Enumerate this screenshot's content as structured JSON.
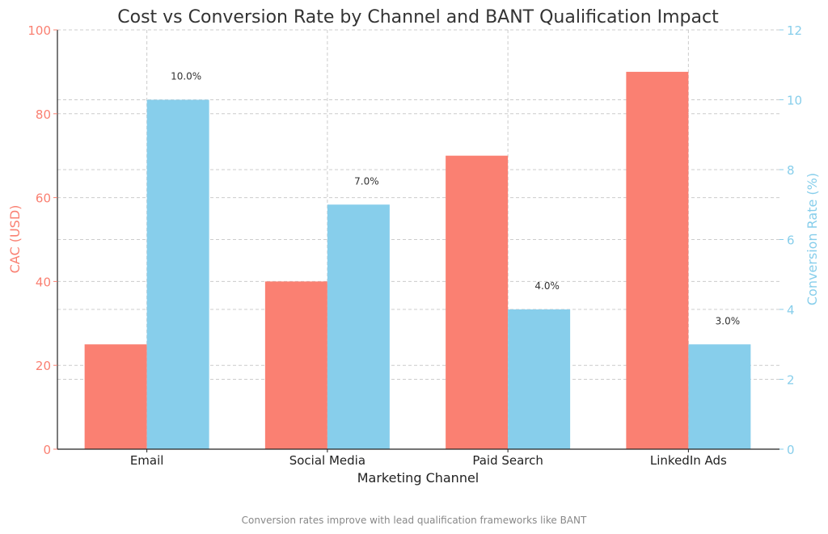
{
  "chart_data": {
    "type": "bar",
    "title": "Cost vs Conversion Rate by Channel and BANT Qualification Impact",
    "xlabel": "Marketing Channel",
    "categories": [
      "Email",
      "Social Media",
      "Paid Search",
      "LinkedIn Ads"
    ],
    "left_axis": {
      "label": "CAC (USD)",
      "ylim": [
        0,
        100
      ],
      "ticks": [
        "0",
        "20",
        "40",
        "60",
        "80",
        "100"
      ],
      "color": "#fa8072"
    },
    "right_axis": {
      "label": "Conversion Rate (%)",
      "ylim": [
        0,
        12
      ],
      "ticks": [
        "0",
        "2",
        "4",
        "6",
        "8",
        "10",
        "12"
      ],
      "color": "#87ceeb"
    },
    "series": [
      {
        "axis": "left",
        "values": [
          25,
          40,
          70,
          90
        ],
        "color": "#fa8072"
      },
      {
        "axis": "right",
        "values": [
          10.0,
          7.0,
          4.0,
          3.0
        ],
        "color": "#87ceeb",
        "data_labels": [
          "10.0%",
          "7.0%",
          "4.0%",
          "3.0%"
        ]
      }
    ],
    "grid": true,
    "caption": "Conversion rates improve with lead qualification frameworks like BANT"
  }
}
